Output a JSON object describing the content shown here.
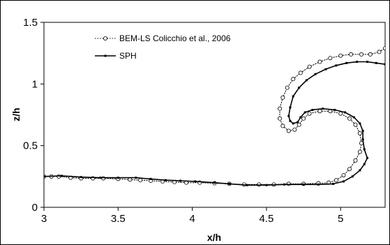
{
  "chart_data": {
    "type": "line",
    "title": "",
    "xlabel": "x/h",
    "ylabel": "z/h",
    "xlim": [
      3,
      5.3
    ],
    "ylim": [
      0,
      1.5
    ],
    "x_ticks": [
      3,
      3.5,
      4,
      4.5,
      5
    ],
    "y_ticks": [
      0,
      0.5,
      1,
      1.5
    ],
    "x_tick_labels": [
      "3",
      "3.5",
      "4",
      "4.5",
      "5"
    ],
    "y_tick_labels": [
      "0",
      "0.5",
      "1",
      "1.5"
    ],
    "grid": false,
    "legend_position": "top-center",
    "colors": {
      "series": "#000000",
      "frame": "#000000"
    },
    "series": [
      {
        "name": "BEM-LS Colicchio et al., 2006",
        "line_style": "dotted",
        "marker": "open-circle",
        "points": [
          [
            3.0,
            0.25
          ],
          [
            3.05,
            0.25
          ],
          [
            3.1,
            0.25
          ],
          [
            3.18,
            0.24
          ],
          [
            3.25,
            0.235
          ],
          [
            3.33,
            0.235
          ],
          [
            3.4,
            0.235
          ],
          [
            3.5,
            0.23
          ],
          [
            3.58,
            0.225
          ],
          [
            3.65,
            0.22
          ],
          [
            3.72,
            0.215
          ],
          [
            3.8,
            0.21
          ],
          [
            3.88,
            0.205
          ],
          [
            3.96,
            0.2
          ],
          [
            4.05,
            0.2
          ],
          [
            4.15,
            0.195
          ],
          [
            4.25,
            0.19
          ],
          [
            4.35,
            0.185
          ],
          [
            4.45,
            0.185
          ],
          [
            4.55,
            0.185
          ],
          [
            4.65,
            0.19
          ],
          [
            4.75,
            0.19
          ],
          [
            4.85,
            0.195
          ],
          [
            4.92,
            0.2
          ],
          [
            4.97,
            0.22
          ],
          [
            5.02,
            0.26
          ],
          [
            5.06,
            0.31
          ],
          [
            5.1,
            0.38
          ],
          [
            5.13,
            0.45
          ],
          [
            5.14,
            0.52
          ],
          [
            5.13,
            0.6
          ],
          [
            5.1,
            0.67
          ],
          [
            5.06,
            0.72
          ],
          [
            5.0,
            0.76
          ],
          [
            4.93,
            0.78
          ],
          [
            4.86,
            0.78
          ],
          [
            4.79,
            0.76
          ],
          [
            4.75,
            0.72
          ],
          [
            4.72,
            0.67
          ],
          [
            4.69,
            0.63
          ],
          [
            4.65,
            0.62
          ],
          [
            4.61,
            0.66
          ],
          [
            4.59,
            0.72
          ],
          [
            4.59,
            0.8
          ],
          [
            4.61,
            0.89
          ],
          [
            4.64,
            0.97
          ],
          [
            4.68,
            1.04
          ],
          [
            4.73,
            1.09
          ],
          [
            4.79,
            1.14
          ],
          [
            4.86,
            1.18
          ],
          [
            4.93,
            1.21
          ],
          [
            5.0,
            1.23
          ],
          [
            5.07,
            1.24
          ],
          [
            5.14,
            1.24
          ],
          [
            5.2,
            1.24
          ],
          [
            5.26,
            1.26
          ],
          [
            5.3,
            1.29
          ]
        ]
      },
      {
        "name": "SPH",
        "line_style": "solid",
        "marker": "small-square",
        "points": [
          [
            3.0,
            0.25
          ],
          [
            3.12,
            0.255
          ],
          [
            3.25,
            0.245
          ],
          [
            3.38,
            0.24
          ],
          [
            3.5,
            0.24
          ],
          [
            3.62,
            0.24
          ],
          [
            3.72,
            0.23
          ],
          [
            3.82,
            0.22
          ],
          [
            3.92,
            0.215
          ],
          [
            4.02,
            0.21
          ],
          [
            4.15,
            0.2
          ],
          [
            4.25,
            0.19
          ],
          [
            4.37,
            0.18
          ],
          [
            4.5,
            0.18
          ],
          [
            4.62,
            0.185
          ],
          [
            4.75,
            0.185
          ],
          [
            4.85,
            0.185
          ],
          [
            4.95,
            0.19
          ],
          [
            5.02,
            0.21
          ],
          [
            5.08,
            0.25
          ],
          [
            5.13,
            0.3
          ],
          [
            5.16,
            0.35
          ],
          [
            5.18,
            0.4
          ],
          [
            5.16,
            0.47
          ],
          [
            5.15,
            0.55
          ],
          [
            5.15,
            0.62
          ],
          [
            5.13,
            0.68
          ],
          [
            5.09,
            0.73
          ],
          [
            5.03,
            0.77
          ],
          [
            4.96,
            0.79
          ],
          [
            4.88,
            0.8
          ],
          [
            4.81,
            0.79
          ],
          [
            4.76,
            0.77
          ],
          [
            4.73,
            0.73
          ],
          [
            4.71,
            0.69
          ],
          [
            4.68,
            0.68
          ],
          [
            4.66,
            0.7
          ],
          [
            4.65,
            0.74
          ],
          [
            4.66,
            0.81
          ],
          [
            4.68,
            0.9
          ],
          [
            4.72,
            0.97
          ],
          [
            4.77,
            1.03
          ],
          [
            4.83,
            1.08
          ],
          [
            4.9,
            1.12
          ],
          [
            4.97,
            1.15
          ],
          [
            5.04,
            1.17
          ],
          [
            5.11,
            1.18
          ],
          [
            5.18,
            1.18
          ],
          [
            5.24,
            1.17
          ],
          [
            5.3,
            1.16
          ]
        ]
      }
    ]
  }
}
